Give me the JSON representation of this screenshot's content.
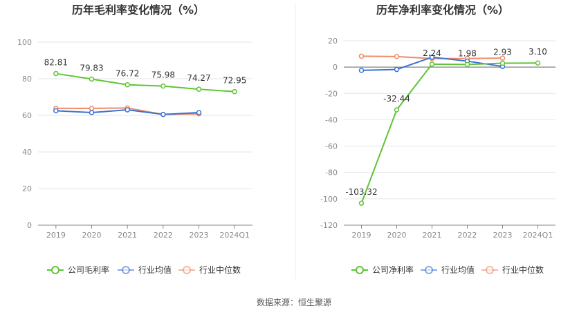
{
  "chart_data": [
    {
      "type": "line",
      "title": "历年毛利率变化情况（%）",
      "categories": [
        "2019",
        "2020",
        "2021",
        "2022",
        "2023",
        "2024Q1"
      ],
      "ylim": [
        0,
        100
      ],
      "yticks": [
        0,
        20,
        40,
        60,
        80,
        100
      ],
      "grid": true,
      "legend_position": "bottom",
      "xlabel": "",
      "ylabel": "",
      "series": [
        {
          "name": "公司毛利率",
          "color": "#5ec435",
          "values": [
            82.81,
            79.83,
            76.72,
            75.98,
            74.27,
            72.95
          ],
          "labels": [
            "82.81",
            "79.83",
            "76.72",
            "75.98",
            "74.27",
            "72.95"
          ]
        },
        {
          "name": "行业均值",
          "color": "#3a72d4",
          "values": [
            62.5,
            61.5,
            63.0,
            60.5,
            61.5,
            null
          ],
          "labels": []
        },
        {
          "name": "行业中位数",
          "color": "#f08a6a",
          "values": [
            63.8,
            63.8,
            64.0,
            60.5,
            60.8,
            null
          ],
          "labels": []
        }
      ]
    },
    {
      "type": "line",
      "title": "历年净利率变化情况（%）",
      "categories": [
        "2019",
        "2020",
        "2021",
        "2022",
        "2023",
        "2024Q1"
      ],
      "ylim": [
        -120,
        20
      ],
      "yticks": [
        -120,
        -100,
        -80,
        -60,
        -40,
        -20,
        0,
        20
      ],
      "grid": true,
      "legend_position": "bottom",
      "xlabel": "",
      "ylabel": "",
      "series": [
        {
          "name": "公司净利率",
          "color": "#5ec435",
          "values": [
            -103.32,
            -32.44,
            2.24,
            1.98,
            2.93,
            3.1
          ],
          "labels": [
            "-103.32",
            "-32.44",
            "2.24",
            "1.98",
            "2.93",
            "3.10"
          ]
        },
        {
          "name": "行业均值",
          "color": "#3a72d4",
          "values": [
            -2.5,
            -1.8,
            7.5,
            4.5,
            0.5,
            null
          ],
          "labels": []
        },
        {
          "name": "行业中位数",
          "color": "#f08a6a",
          "values": [
            8.3,
            8.0,
            6.5,
            6.5,
            6.8,
            null
          ],
          "labels": []
        }
      ]
    }
  ],
  "source": "数据来源：恒生聚源"
}
